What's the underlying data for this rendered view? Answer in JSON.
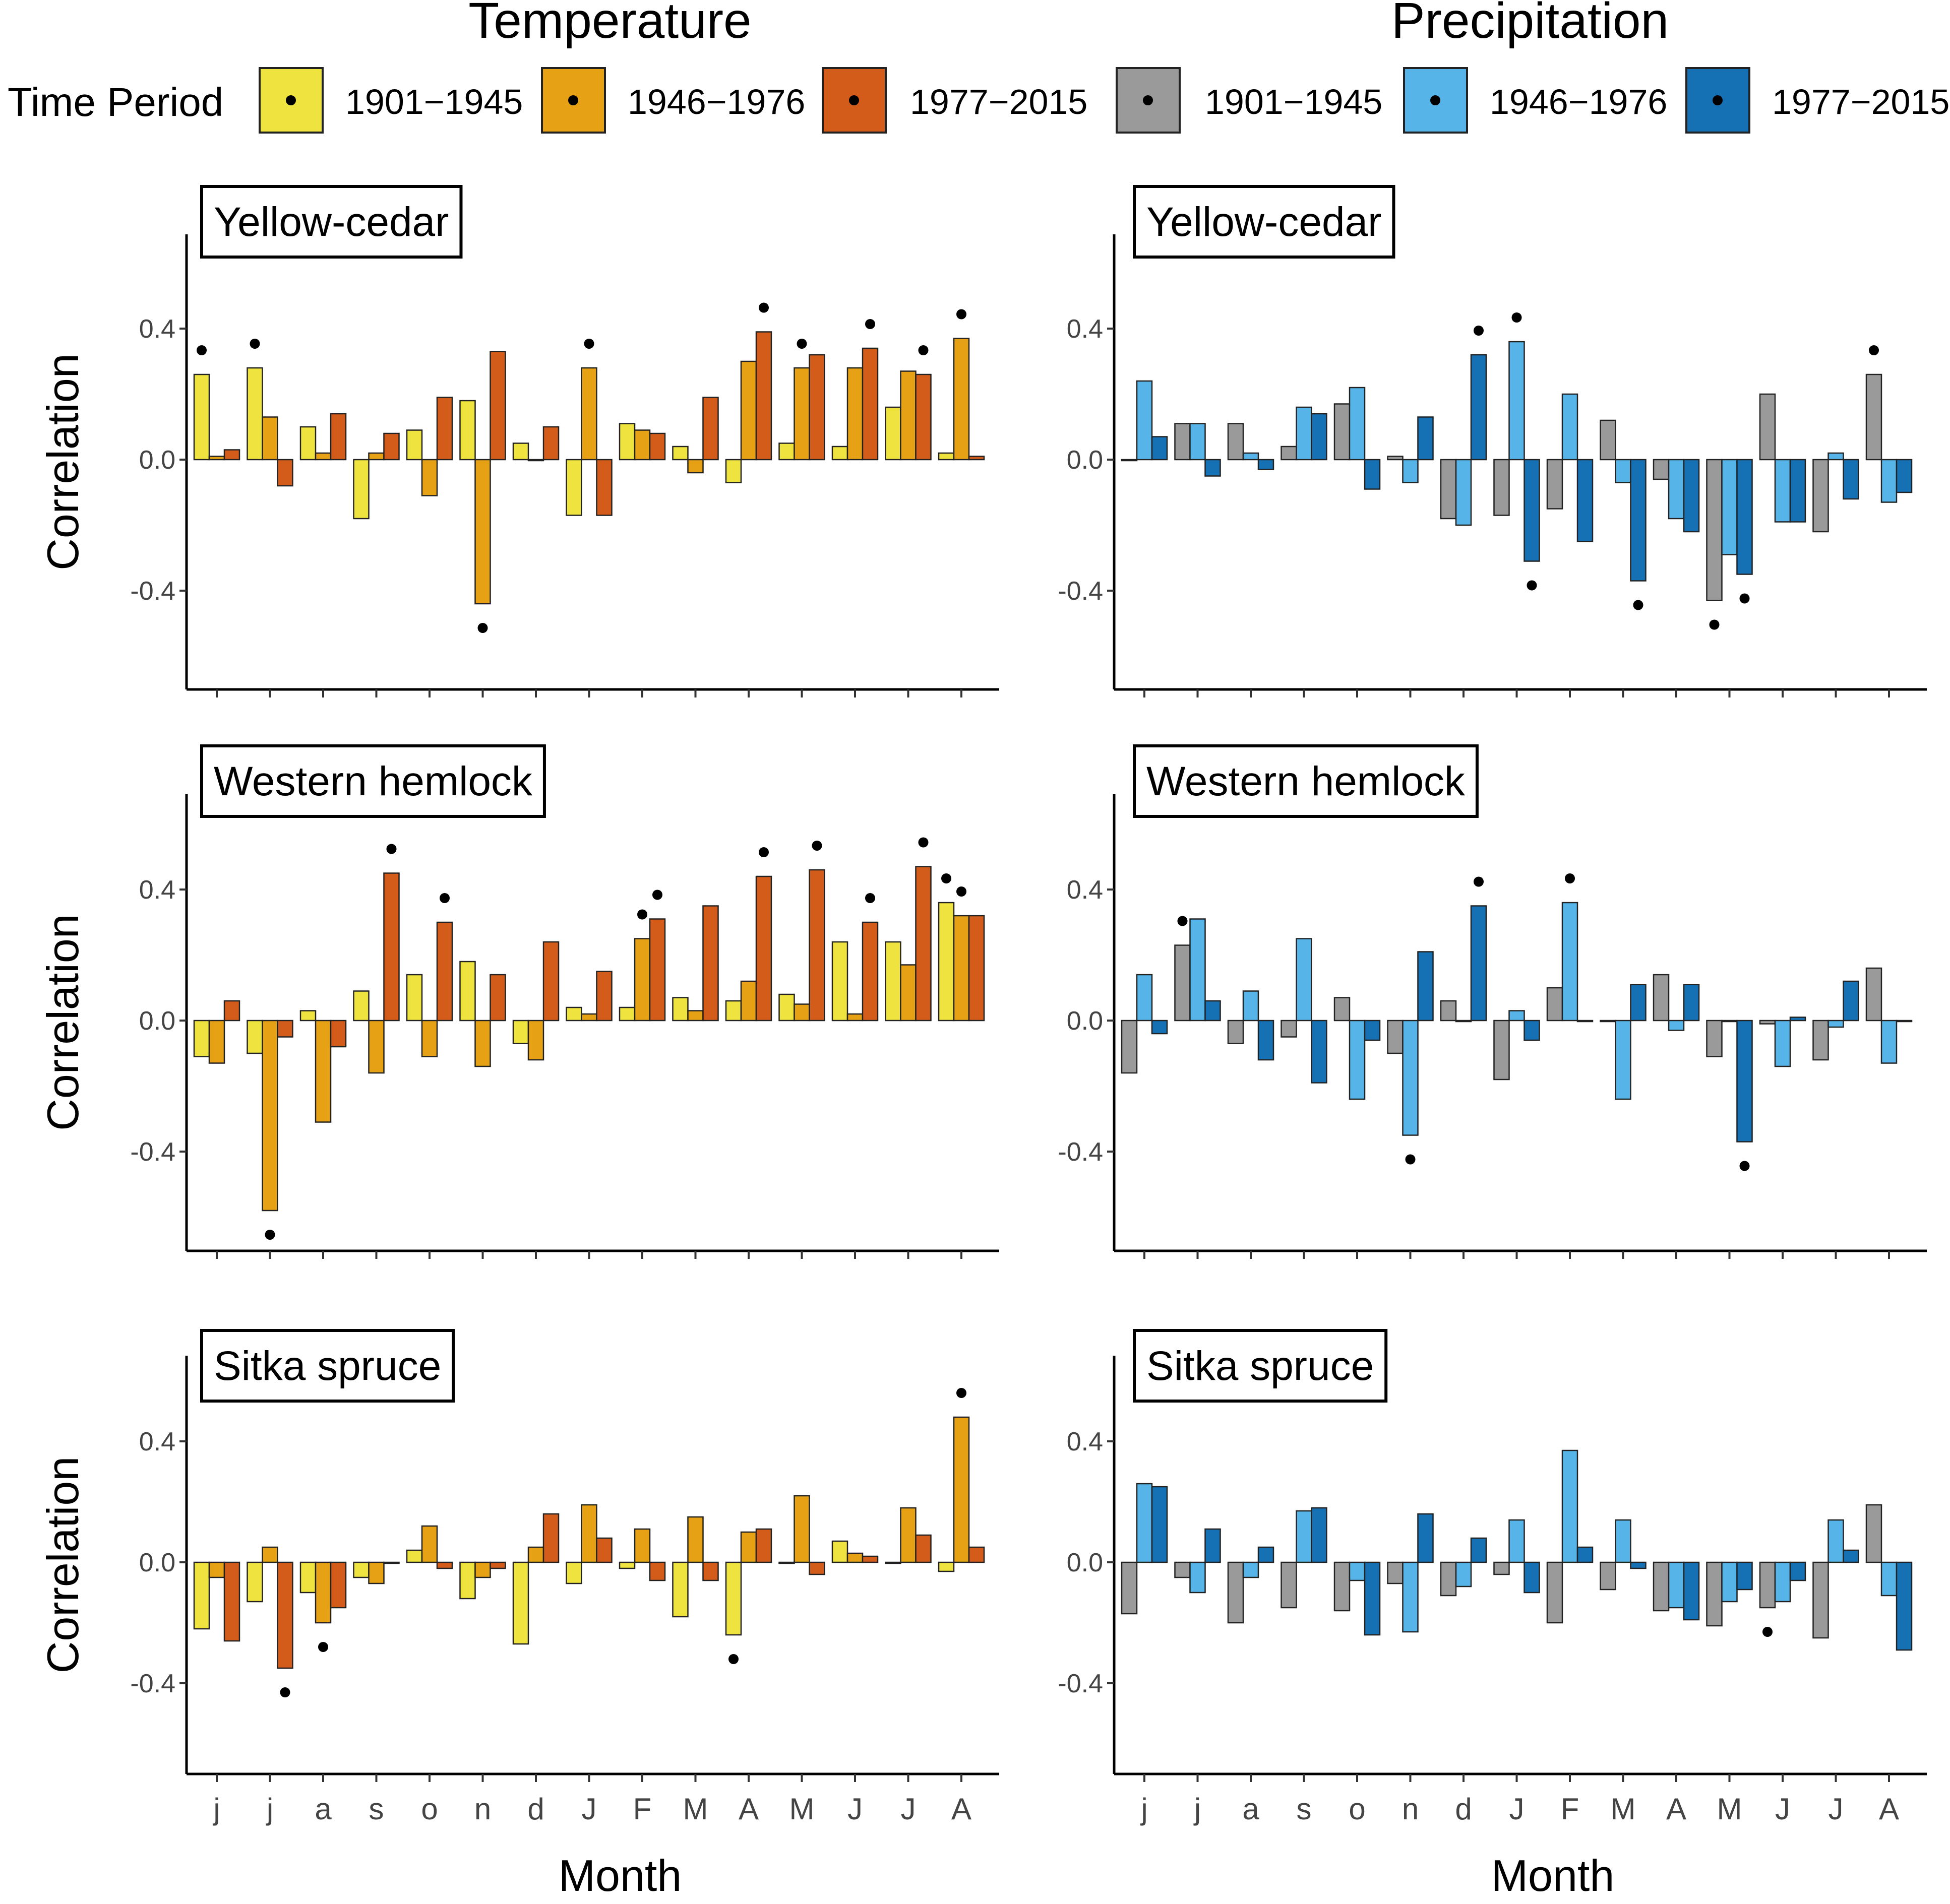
{
  "figure": {
    "columns": [
      {
        "key": "temperature",
        "title": "Temperature"
      },
      {
        "key": "precipitation",
        "title": "Precipitation"
      }
    ],
    "legend": {
      "title": "Time Period",
      "groups": [
        {
          "column": "temperature",
          "items": [
            {
              "label": "1901−1945",
              "color": "#EFE340"
            },
            {
              "label": "1946−1976",
              "color": "#E6A114"
            },
            {
              "label": "1977−2015",
              "color": "#D45C1A"
            }
          ]
        },
        {
          "column": "precipitation",
          "items": [
            {
              "label": "1901−1945",
              "color": "#9A9A9A"
            },
            {
              "label": "1946−1976",
              "color": "#56B4E9"
            },
            {
              "label": "1977−2015",
              "color": "#1670B4"
            }
          ]
        }
      ]
    },
    "xlabel": "Month",
    "ylabel": "Correlation",
    "yticks": [
      -0.4,
      0.0,
      0.4
    ],
    "ytick_labels": [
      "-0.4",
      "0.0",
      "0.4"
    ]
  },
  "chart_data": [
    {
      "type": "bar",
      "column": "temperature",
      "panel": "Yellow-cedar",
      "categories": [
        "j",
        "j",
        "a",
        "s",
        "o",
        "n",
        "d",
        "J",
        "F",
        "M",
        "A",
        "M",
        "J",
        "J",
        "A"
      ],
      "ylim": [
        -0.7,
        0.7
      ],
      "xlabel": "Month",
      "ylabel": "Correlation",
      "series": [
        {
          "name": "1901−1945",
          "values": [
            0.26,
            0.28,
            0.1,
            -0.18,
            0.09,
            0.18,
            0.05,
            -0.17,
            0.11,
            0.04,
            -0.07,
            0.05,
            0.04,
            0.16,
            0.02
          ],
          "significant": [
            true,
            true,
            false,
            false,
            false,
            false,
            false,
            false,
            false,
            false,
            false,
            false,
            false,
            false,
            false
          ]
        },
        {
          "name": "1946−1976",
          "values": [
            0.01,
            0.13,
            0.02,
            0.02,
            -0.11,
            -0.44,
            0.0,
            0.28,
            0.09,
            -0.04,
            0.3,
            0.28,
            0.28,
            0.27,
            0.37
          ],
          "significant": [
            false,
            false,
            false,
            false,
            false,
            true,
            false,
            true,
            false,
            false,
            false,
            true,
            false,
            false,
            true
          ]
        },
        {
          "name": "1977−2015",
          "values": [
            0.03,
            -0.08,
            0.14,
            0.08,
            0.19,
            0.33,
            0.1,
            -0.17,
            0.08,
            0.19,
            0.39,
            0.32,
            0.34,
            0.26,
            0.01
          ],
          "significant": [
            false,
            false,
            false,
            false,
            false,
            false,
            false,
            false,
            false,
            false,
            true,
            false,
            true,
            true,
            false
          ]
        }
      ]
    },
    {
      "type": "bar",
      "column": "temperature",
      "panel": "Western hemlock",
      "categories": [
        "j",
        "j",
        "a",
        "s",
        "o",
        "n",
        "d",
        "J",
        "F",
        "M",
        "A",
        "M",
        "J",
        "J",
        "A"
      ],
      "ylim": [
        -0.7,
        0.7
      ],
      "xlabel": "Month",
      "ylabel": "Correlation",
      "series": [
        {
          "name": "1901−1945",
          "values": [
            -0.11,
            -0.1,
            0.03,
            0.09,
            0.14,
            0.18,
            -0.07,
            0.04,
            0.04,
            0.07,
            0.06,
            0.08,
            0.24,
            0.24,
            0.36
          ],
          "significant": [
            false,
            false,
            false,
            false,
            false,
            false,
            false,
            false,
            false,
            false,
            false,
            false,
            false,
            false,
            true
          ]
        },
        {
          "name": "1946−1976",
          "values": [
            -0.13,
            -0.58,
            -0.31,
            -0.16,
            -0.11,
            -0.14,
            -0.12,
            0.02,
            0.25,
            0.03,
            0.12,
            0.05,
            0.02,
            0.17,
            0.32
          ],
          "significant": [
            false,
            true,
            false,
            false,
            false,
            false,
            false,
            false,
            true,
            false,
            false,
            false,
            false,
            false,
            true
          ]
        },
        {
          "name": "1977−2015",
          "values": [
            0.06,
            -0.05,
            -0.08,
            0.45,
            0.3,
            0.14,
            0.24,
            0.15,
            0.31,
            0.35,
            0.44,
            0.46,
            0.3,
            0.47,
            0.32
          ],
          "significant": [
            false,
            false,
            false,
            true,
            true,
            false,
            false,
            false,
            true,
            false,
            true,
            true,
            true,
            true,
            false
          ]
        }
      ]
    },
    {
      "type": "bar",
      "column": "temperature",
      "panel": "Sitka spruce",
      "categories": [
        "j",
        "j",
        "a",
        "s",
        "o",
        "n",
        "d",
        "J",
        "F",
        "M",
        "A",
        "M",
        "J",
        "J",
        "A"
      ],
      "ylim": [
        -0.7,
        0.7
      ],
      "xlabel": "Month",
      "ylabel": "Correlation",
      "series": [
        {
          "name": "1901−1945",
          "values": [
            -0.22,
            -0.13,
            -0.1,
            -0.05,
            0.04,
            -0.12,
            -0.27,
            -0.07,
            -0.02,
            -0.18,
            -0.24,
            0.0,
            0.07,
            0.0,
            -0.03
          ],
          "significant": [
            false,
            false,
            false,
            false,
            false,
            false,
            false,
            false,
            false,
            false,
            true,
            false,
            false,
            false,
            false
          ]
        },
        {
          "name": "1946−1976",
          "values": [
            -0.05,
            0.05,
            -0.2,
            -0.07,
            0.12,
            -0.05,
            0.05,
            0.19,
            0.11,
            0.15,
            0.1,
            0.22,
            0.03,
            0.18,
            0.48
          ],
          "significant": [
            false,
            false,
            true,
            false,
            false,
            false,
            false,
            false,
            false,
            false,
            false,
            false,
            false,
            false,
            true
          ]
        },
        {
          "name": "1977−2015",
          "values": [
            -0.26,
            -0.35,
            -0.15,
            0.0,
            -0.02,
            -0.02,
            0.16,
            0.08,
            -0.06,
            -0.06,
            0.11,
            -0.04,
            0.02,
            0.09,
            0.05
          ],
          "significant": [
            false,
            true,
            false,
            false,
            false,
            false,
            false,
            false,
            false,
            false,
            false,
            false,
            false,
            false,
            false
          ]
        }
      ]
    },
    {
      "type": "bar",
      "column": "precipitation",
      "panel": "Yellow-cedar",
      "categories": [
        "j",
        "j",
        "a",
        "s",
        "o",
        "n",
        "d",
        "J",
        "F",
        "M",
        "A",
        "M",
        "J",
        "J",
        "A"
      ],
      "ylim": [
        -0.7,
        0.7
      ],
      "xlabel": "Month",
      "ylabel": "Correlation",
      "series": [
        {
          "name": "1901−1945",
          "values": [
            0.0,
            0.11,
            0.11,
            0.04,
            0.17,
            0.01,
            -0.18,
            -0.17,
            -0.15,
            0.12,
            -0.06,
            -0.43,
            0.2,
            -0.22,
            0.26
          ],
          "significant": [
            false,
            false,
            false,
            false,
            false,
            false,
            false,
            false,
            false,
            false,
            false,
            true,
            false,
            false,
            true
          ]
        },
        {
          "name": "1946−1976",
          "values": [
            0.24,
            0.11,
            0.02,
            0.16,
            0.22,
            -0.07,
            -0.2,
            0.36,
            0.2,
            -0.07,
            -0.18,
            -0.29,
            -0.19,
            0.02,
            -0.13
          ],
          "significant": [
            false,
            false,
            false,
            false,
            false,
            false,
            false,
            true,
            false,
            false,
            false,
            false,
            false,
            false,
            false
          ]
        },
        {
          "name": "1977−2015",
          "values": [
            0.07,
            -0.05,
            -0.03,
            0.14,
            -0.09,
            0.13,
            0.32,
            -0.31,
            -0.25,
            -0.37,
            -0.22,
            -0.35,
            -0.19,
            -0.12,
            -0.1
          ],
          "significant": [
            false,
            false,
            false,
            false,
            false,
            false,
            true,
            true,
            false,
            true,
            false,
            true,
            false,
            false,
            false
          ]
        }
      ]
    },
    {
      "type": "bar",
      "column": "precipitation",
      "panel": "Western hemlock",
      "categories": [
        "j",
        "j",
        "a",
        "s",
        "o",
        "n",
        "d",
        "J",
        "F",
        "M",
        "A",
        "M",
        "J",
        "J",
        "A"
      ],
      "ylim": [
        -0.7,
        0.7
      ],
      "xlabel": "Month",
      "ylabel": "Correlation",
      "series": [
        {
          "name": "1901−1945",
          "values": [
            -0.16,
            0.23,
            -0.07,
            -0.05,
            0.07,
            -0.1,
            0.06,
            -0.18,
            0.1,
            0.0,
            0.14,
            -0.11,
            -0.01,
            -0.12,
            0.16
          ],
          "significant": [
            false,
            true,
            false,
            false,
            false,
            false,
            false,
            false,
            false,
            false,
            false,
            false,
            false,
            false,
            false
          ]
        },
        {
          "name": "1946−1976",
          "values": [
            0.14,
            0.31,
            0.09,
            0.25,
            -0.24,
            -0.35,
            0.0,
            0.03,
            0.36,
            -0.24,
            -0.03,
            0.0,
            -0.14,
            -0.02,
            -0.13
          ],
          "significant": [
            false,
            false,
            false,
            false,
            false,
            true,
            false,
            false,
            true,
            false,
            false,
            false,
            false,
            false,
            false
          ]
        },
        {
          "name": "1977−2015",
          "values": [
            -0.04,
            0.06,
            -0.12,
            -0.19,
            -0.06,
            0.21,
            0.35,
            -0.06,
            0.0,
            0.11,
            0.11,
            -0.37,
            0.01,
            0.12,
            0.0
          ],
          "significant": [
            false,
            false,
            false,
            false,
            false,
            false,
            true,
            false,
            false,
            false,
            false,
            true,
            false,
            false,
            false
          ]
        }
      ]
    },
    {
      "type": "bar",
      "column": "precipitation",
      "panel": "Sitka spruce",
      "categories": [
        "j",
        "j",
        "a",
        "s",
        "o",
        "n",
        "d",
        "J",
        "F",
        "M",
        "A",
        "M",
        "J",
        "J",
        "A"
      ],
      "ylim": [
        -0.7,
        0.7
      ],
      "xlabel": "Month",
      "ylabel": "Correlation",
      "series": [
        {
          "name": "1901−1945",
          "values": [
            -0.17,
            -0.05,
            -0.2,
            -0.15,
            -0.16,
            -0.07,
            -0.11,
            -0.04,
            -0.2,
            -0.09,
            -0.16,
            -0.21,
            -0.15,
            -0.25,
            0.19
          ],
          "significant": [
            false,
            false,
            false,
            false,
            false,
            false,
            false,
            false,
            false,
            false,
            false,
            false,
            true,
            false,
            false
          ]
        },
        {
          "name": "1946−1976",
          "values": [
            0.26,
            -0.1,
            -0.05,
            0.17,
            -0.06,
            -0.23,
            -0.08,
            0.14,
            0.37,
            0.14,
            -0.15,
            -0.13,
            -0.13,
            0.14,
            -0.11
          ],
          "significant": [
            false,
            false,
            false,
            false,
            false,
            false,
            false,
            false,
            false,
            false,
            false,
            false,
            false,
            false,
            false
          ]
        },
        {
          "name": "1977−2015",
          "values": [
            0.25,
            0.11,
            0.05,
            0.18,
            -0.24,
            0.16,
            0.08,
            -0.1,
            0.05,
            -0.02,
            -0.19,
            -0.09,
            -0.06,
            0.04,
            -0.29
          ],
          "significant": [
            false,
            false,
            false,
            false,
            false,
            false,
            false,
            false,
            false,
            false,
            false,
            false,
            false,
            false,
            false
          ]
        }
      ]
    }
  ]
}
